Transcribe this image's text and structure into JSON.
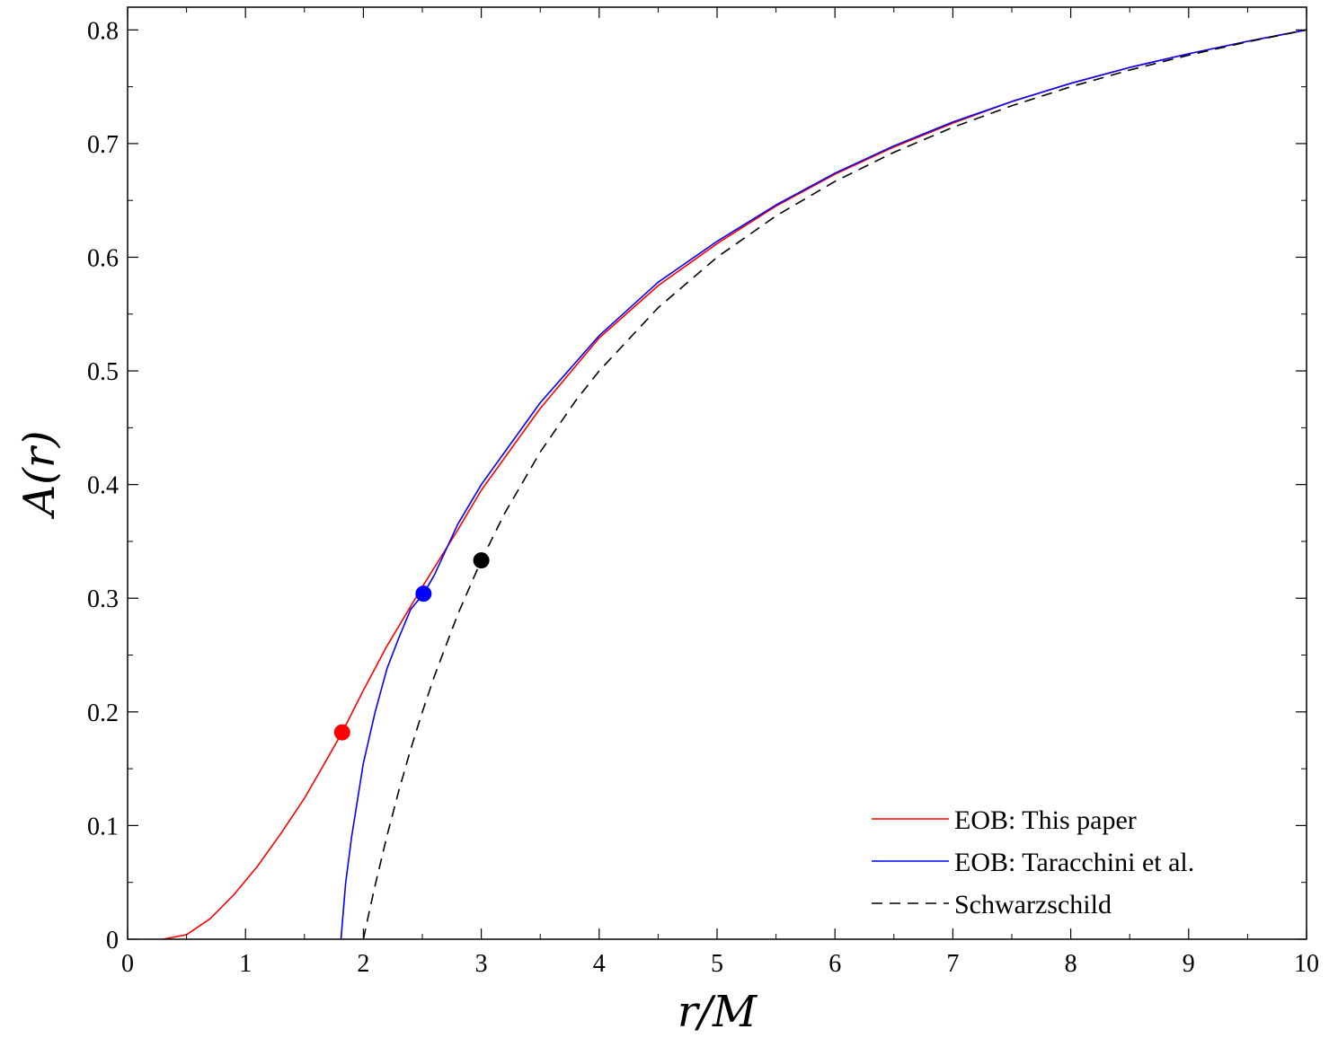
{
  "chart_data": {
    "type": "line",
    "title": "",
    "xlabel": "r/M",
    "ylabel": "A(r)",
    "xlim": [
      0,
      10
    ],
    "ylim": [
      0,
      0.82
    ],
    "x_ticks": [
      0,
      1,
      2,
      3,
      4,
      5,
      6,
      7,
      8,
      9,
      10
    ],
    "x_tick_labels": [
      "0",
      "1",
      "2",
      "3",
      "4",
      "5",
      "6",
      "7",
      "8",
      "9",
      "10"
    ],
    "y_ticks": [
      0,
      0.1,
      0.2,
      0.3,
      0.4,
      0.5,
      0.6,
      0.7,
      0.8
    ],
    "y_tick_labels": [
      "0",
      "0.1",
      "0.2",
      "0.3",
      "0.4",
      "0.5",
      "0.6",
      "0.7",
      "0.8"
    ],
    "grid": false,
    "legend_position": "bottom-right",
    "series": [
      {
        "name": "EOB: This paper",
        "color": "#ff0000",
        "style": "solid",
        "x": [
          0.3,
          0.5,
          0.7,
          0.9,
          1.1,
          1.3,
          1.5,
          1.7,
          1.82,
          2.0,
          2.2,
          2.5,
          2.8,
          3.0,
          3.5,
          4.0,
          4.5,
          5.0,
          5.5,
          6.0,
          6.5,
          7.0,
          7.5,
          8.0,
          8.5,
          9.0,
          9.5,
          10.0
        ],
        "y": [
          0.0,
          0.004,
          0.018,
          0.039,
          0.064,
          0.093,
          0.124,
          0.16,
          0.182,
          0.219,
          0.258,
          0.31,
          0.36,
          0.395,
          0.467,
          0.529,
          0.575,
          0.612,
          0.645,
          0.673,
          0.697,
          0.718,
          0.737,
          0.753,
          0.767,
          0.779,
          0.79,
          0.8
        ]
      },
      {
        "name": "EOB: Taracchini et al.",
        "color": "#0000ff",
        "style": "solid",
        "x": [
          1.81,
          1.85,
          1.9,
          2.0,
          2.1,
          2.2,
          2.3,
          2.4,
          2.51,
          2.6,
          2.8,
          3.0,
          3.5,
          4.0,
          4.5,
          5.0,
          5.5,
          6.0,
          6.5,
          7.0,
          7.5,
          8.0,
          8.5,
          9.0,
          9.5,
          10.0
        ],
        "y": [
          0.0,
          0.05,
          0.09,
          0.155,
          0.2,
          0.238,
          0.265,
          0.29,
          0.304,
          0.32,
          0.365,
          0.4,
          0.472,
          0.531,
          0.578,
          0.614,
          0.646,
          0.674,
          0.698,
          0.719,
          0.737,
          0.753,
          0.767,
          0.779,
          0.79,
          0.8
        ]
      },
      {
        "name": "Schwarzschild",
        "color": "#000000",
        "style": "dashed",
        "x": [
          2.0,
          2.05,
          2.1,
          2.2,
          2.3,
          2.4,
          2.5,
          2.6,
          2.8,
          3.0,
          3.2,
          3.5,
          3.8,
          4.0,
          4.5,
          5.0,
          5.5,
          6.0,
          6.5,
          7.0,
          7.5,
          8.0,
          8.5,
          9.0,
          9.5,
          10.0
        ],
        "y": [
          0.0,
          0.0244,
          0.0476,
          0.0909,
          0.1304,
          0.1667,
          0.2,
          0.2308,
          0.2857,
          0.3333,
          0.375,
          0.4286,
          0.4737,
          0.5,
          0.5556,
          0.6,
          0.6364,
          0.6667,
          0.6923,
          0.7143,
          0.7333,
          0.75,
          0.7647,
          0.7778,
          0.7895,
          0.8
        ]
      }
    ],
    "markers": [
      {
        "x": 1.82,
        "y": 0.182,
        "color": "#ff0000"
      },
      {
        "x": 2.51,
        "y": 0.304,
        "color": "#0000ff"
      },
      {
        "x": 3.0,
        "y": 0.3333,
        "color": "#000000"
      }
    ]
  }
}
